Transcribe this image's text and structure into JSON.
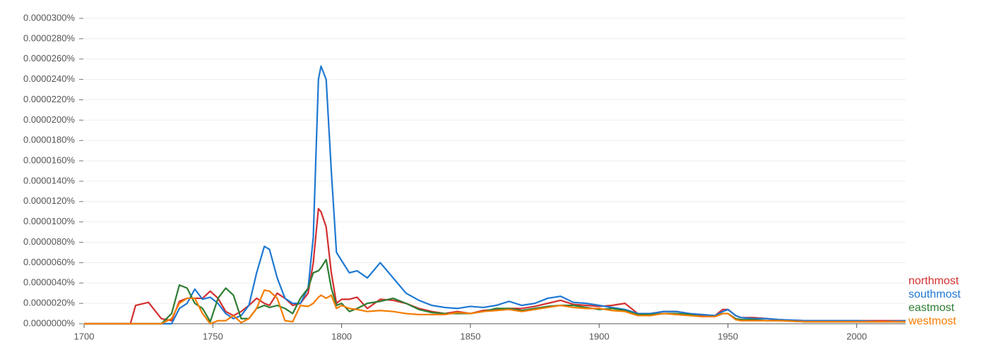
{
  "chart_data": {
    "type": "line",
    "x": [
      1700,
      1710,
      1718,
      1720,
      1725,
      1730,
      1734,
      1737,
      1740,
      1743,
      1746,
      1749,
      1752,
      1755,
      1758,
      1761,
      1764,
      1767,
      1770,
      1772,
      1775,
      1778,
      1781,
      1784,
      1787,
      1789,
      1791,
      1792,
      1794,
      1796,
      1798,
      1800,
      1803,
      1806,
      1810,
      1815,
      1820,
      1825,
      1830,
      1835,
      1840,
      1845,
      1850,
      1855,
      1860,
      1865,
      1870,
      1875,
      1880,
      1885,
      1890,
      1895,
      1900,
      1905,
      1910,
      1915,
      1920,
      1925,
      1930,
      1935,
      1940,
      1945,
      1948,
      1950,
      1953,
      1955,
      1960,
      1965,
      1970,
      1980,
      1990,
      2000,
      2010,
      2019
    ],
    "series": [
      {
        "name": "northmost",
        "color": "#d32f2f",
        "values": [
          0,
          0,
          0,
          1.8e-06,
          2.1e-06,
          5e-07,
          3e-07,
          2.2e-06,
          2.5e-06,
          2.5e-06,
          2.5e-06,
          3.2e-06,
          2.5e-06,
          1.2e-06,
          8e-07,
          1.2e-06,
          1.8e-06,
          2.5e-06,
          2e-06,
          1.8e-06,
          3e-06,
          2.5e-06,
          1.8e-06,
          2e-06,
          3e-06,
          6e-06,
          1.13e-05,
          1.1e-05,
          9.5e-06,
          5e-06,
          2e-06,
          2.4e-06,
          2.4e-06,
          2.6e-06,
          1.5e-06,
          2.4e-06,
          2.3e-06,
          2e-06,
          1.5e-06,
          1.2e-06,
          1e-06,
          1.2e-06,
          1e-06,
          1.3e-06,
          1.4e-06,
          1.5e-06,
          1.5e-06,
          1.7e-06,
          2e-06,
          2.3e-06,
          1.9e-06,
          1.8e-06,
          1.7e-06,
          1.8e-06,
          2e-06,
          1e-06,
          1e-06,
          1.2e-06,
          1.2e-06,
          1e-06,
          8e-07,
          8e-07,
          1.4e-06,
          1.4e-06,
          8e-07,
          6e-07,
          6e-07,
          5e-07,
          4e-07,
          3e-07,
          3e-07,
          3e-07,
          3e-07,
          3e-07
        ]
      },
      {
        "name": "southmost",
        "color": "#1e78d2",
        "values": [
          0,
          0,
          0,
          0,
          0,
          0,
          0,
          1.5e-06,
          2e-06,
          3.4e-06,
          2.4e-06,
          2.6e-06,
          2e-06,
          1e-06,
          5e-07,
          8e-07,
          1.8e-06,
          5e-06,
          7.6e-06,
          7.3e-06,
          4.5e-06,
          2.5e-06,
          2e-06,
          2e-06,
          3.5e-06,
          8.5e-06,
          2.4e-05,
          2.53e-05,
          2.4e-05,
          1.5e-05,
          7e-06,
          6.2e-06,
          5e-06,
          5.2e-06,
          4.5e-06,
          6e-06,
          4.5e-06,
          3e-06,
          2.3e-06,
          1.8e-06,
          1.6e-06,
          1.5e-06,
          1.7e-06,
          1.6e-06,
          1.8e-06,
          2.2e-06,
          1.8e-06,
          2e-06,
          2.5e-06,
          2.7e-06,
          2.1e-06,
          2e-06,
          1.8e-06,
          1.6e-06,
          1.4e-06,
          1e-06,
          1e-06,
          1.2e-06,
          1.2e-06,
          1e-06,
          9e-07,
          8e-07,
          1.2e-06,
          1.4e-06,
          8e-07,
          6e-07,
          5e-07,
          5e-07,
          4e-07,
          3e-07,
          3e-07,
          3e-07,
          2e-07,
          3e-07
        ]
      },
      {
        "name": "eastmost",
        "color": "#2e7d32",
        "values": [
          0,
          0,
          0,
          0,
          0,
          0,
          1e-06,
          3.8e-06,
          3.5e-06,
          2e-06,
          1.5e-06,
          2e-07,
          2.5e-06,
          3.5e-06,
          2.8e-06,
          5e-07,
          5e-07,
          1.5e-06,
          1.8e-06,
          1.6e-06,
          1.8e-06,
          1.5e-06,
          1e-06,
          2.5e-06,
          3.5e-06,
          5e-06,
          5.2e-06,
          5.5e-06,
          6.3e-06,
          3.5e-06,
          1.8e-06,
          2e-06,
          1.2e-06,
          1.5e-06,
          2e-06,
          2.2e-06,
          2.5e-06,
          2e-06,
          1.4e-06,
          1.1e-06,
          1e-06,
          1e-06,
          1e-06,
          1.2e-06,
          1.5e-06,
          1.5e-06,
          1.3e-06,
          1.5e-06,
          1.7e-06,
          1.8e-06,
          1.8e-06,
          1.6e-06,
          1.4e-06,
          1.5e-06,
          1.3e-06,
          9e-07,
          9e-07,
          1e-06,
          1e-06,
          9e-07,
          7e-07,
          7e-07,
          1e-06,
          1e-06,
          5e-07,
          4e-07,
          4e-07,
          3e-07,
          3e-07,
          2e-07,
          2e-07,
          2e-07,
          2e-07,
          2e-07
        ]
      },
      {
        "name": "westmost",
        "color": "#f57c00",
        "values": [
          0,
          0,
          0,
          0,
          0,
          0,
          5e-07,
          2e-06,
          2.5e-06,
          2.5e-06,
          1e-06,
          0,
          3e-07,
          3e-07,
          8e-07,
          1e-07,
          5e-07,
          1.5e-06,
          3.3e-06,
          3.2e-06,
          2.5e-06,
          3e-07,
          2e-07,
          1.8e-06,
          1.7e-06,
          2e-06,
          2.6e-06,
          2.8e-06,
          2.5e-06,
          2.8e-06,
          1.5e-06,
          1.8e-06,
          1.5e-06,
          1.4e-06,
          1.2e-06,
          1.3e-06,
          1.2e-06,
          1e-06,
          9e-07,
          9e-07,
          9e-07,
          1.1e-06,
          1e-06,
          1.2e-06,
          1.3e-06,
          1.4e-06,
          1.2e-06,
          1.4e-06,
          1.6e-06,
          1.8e-06,
          1.6e-06,
          1.5e-06,
          1.5e-06,
          1.3e-06,
          1.2e-06,
          8e-07,
          8e-07,
          1e-06,
          9e-07,
          8e-07,
          7e-07,
          7e-07,
          1e-06,
          1e-06,
          4e-07,
          3e-07,
          3e-07,
          3e-07,
          3e-07,
          2e-07,
          2e-07,
          2e-07,
          2e-07,
          2e-07
        ]
      }
    ],
    "xlim": [
      1700,
      2019
    ],
    "xticks": [
      1700,
      1750,
      1800,
      1850,
      1900,
      1950,
      2000
    ],
    "ylim": [
      0,
      3e-05
    ],
    "yticks": [
      {
        "value": 0,
        "label": "0.0000000%"
      },
      {
        "value": 2e-06,
        "label": "0.0000020%"
      },
      {
        "value": 4e-06,
        "label": "0.0000040%"
      },
      {
        "value": 6e-06,
        "label": "0.0000060%"
      },
      {
        "value": 8e-06,
        "label": "0.0000080%"
      },
      {
        "value": 1e-05,
        "label": "0.0000100%"
      },
      {
        "value": 1.2e-05,
        "label": "0.0000120%"
      },
      {
        "value": 1.4e-05,
        "label": "0.0000140%"
      },
      {
        "value": 1.6e-05,
        "label": "0.0000160%"
      },
      {
        "value": 1.8e-05,
        "label": "0.0000180%"
      },
      {
        "value": 2e-05,
        "label": "0.0000200%"
      },
      {
        "value": 2.2e-05,
        "label": "0.0000220%"
      },
      {
        "value": 2.4e-05,
        "label": "0.0000240%"
      },
      {
        "value": 2.6e-05,
        "label": "0.0000260%"
      },
      {
        "value": 2.8e-05,
        "label": "0.0000280%"
      },
      {
        "value": 3e-05,
        "label": "0.0000300%"
      }
    ],
    "grid": true,
    "legend": "right"
  }
}
